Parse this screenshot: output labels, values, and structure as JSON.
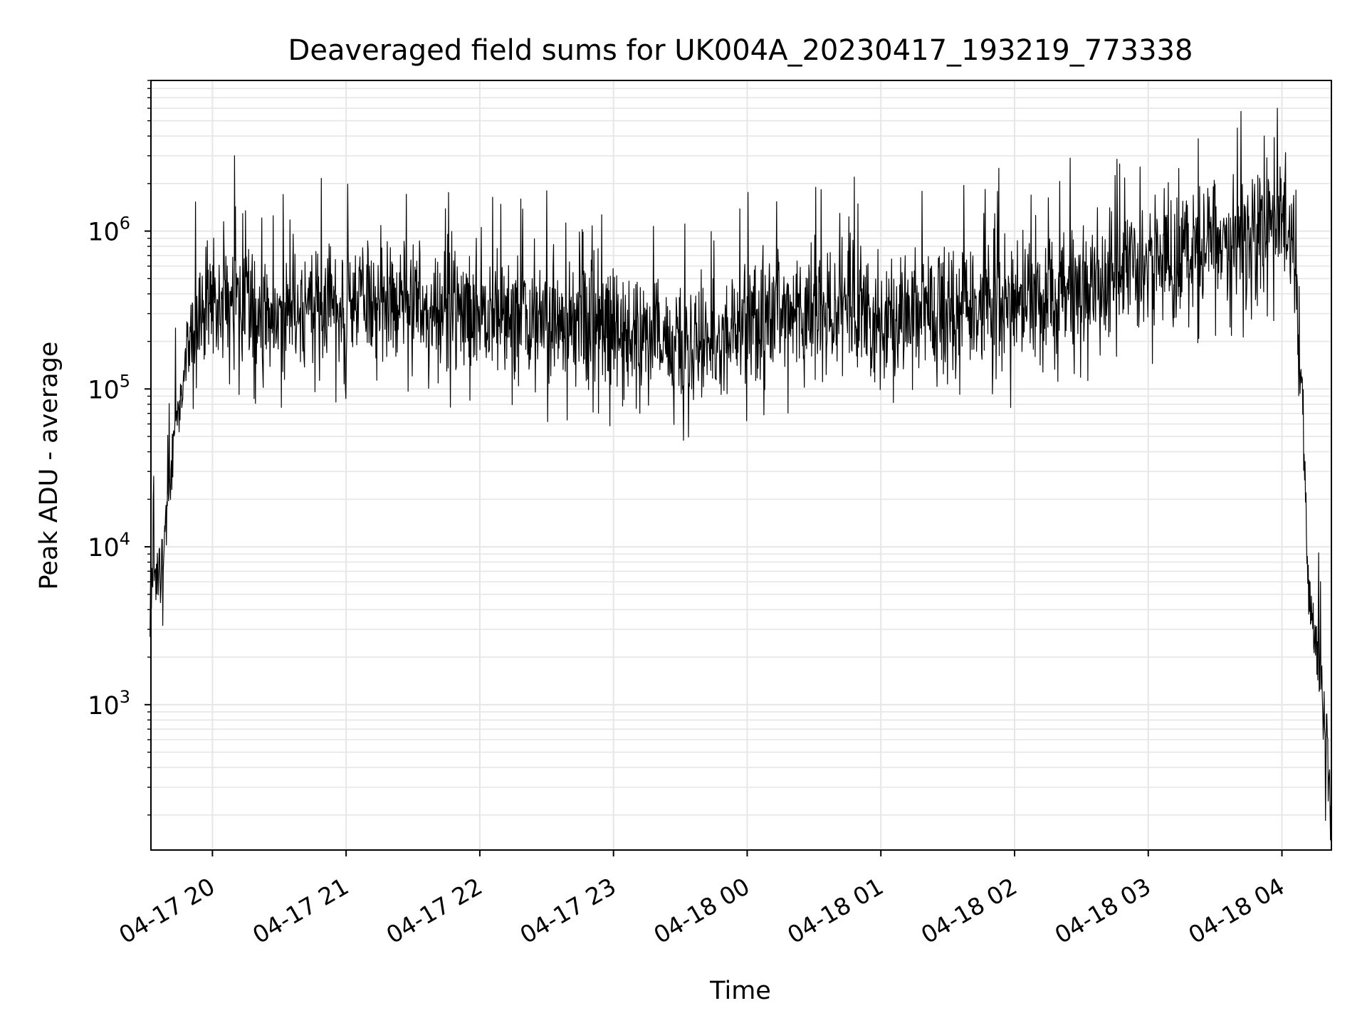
{
  "chart_data": {
    "type": "line",
    "title": "Deaveraged field sums for UK004A_20230417_193219_773338",
    "xlabel": "Time",
    "ylabel": "Peak ADU - average",
    "x_start": "04-17 19:32",
    "x_end": "04-18 04:22",
    "xlim_hours": [
      19.54,
      28.37
    ],
    "yscale": "log",
    "ylim": [
      120,
      9000000
    ],
    "grid": "major and minor, light gray",
    "line_color": "#000000",
    "x_ticks": [
      {
        "value": 20,
        "label": "04-17 20"
      },
      {
        "value": 21,
        "label": "04-17 21"
      },
      {
        "value": 22,
        "label": "04-17 22"
      },
      {
        "value": 23,
        "label": "04-17 23"
      },
      {
        "value": 24,
        "label": "04-18 00"
      },
      {
        "value": 25,
        "label": "04-18 01"
      },
      {
        "value": 26,
        "label": "04-18 02"
      },
      {
        "value": 27,
        "label": "04-18 03"
      },
      {
        "value": 28,
        "label": "04-18 04"
      }
    ],
    "y_ticks": [
      {
        "value": 1000,
        "base": "10",
        "exp": "3"
      },
      {
        "value": 10000,
        "base": "10",
        "exp": "4"
      },
      {
        "value": 100000,
        "base": "10",
        "exp": "5"
      },
      {
        "value": 1000000,
        "base": "10",
        "exp": "6"
      }
    ],
    "envelope": [
      {
        "x": "04-17 19:32",
        "y": 5000
      },
      {
        "x": "04-17 19:37",
        "y": 7000
      },
      {
        "x": "04-17 19:41",
        "y": 30000
      },
      {
        "x": "04-17 19:46",
        "y": 100000
      },
      {
        "x": "04-17 19:51",
        "y": 250000
      },
      {
        "x": "04-17 20:00",
        "y": 350000
      },
      {
        "x": "04-17 20:30",
        "y": 320000
      },
      {
        "x": "04-17 21:00",
        "y": 360000
      },
      {
        "x": "04-17 21:30",
        "y": 350000
      },
      {
        "x": "04-17 22:00",
        "y": 300000
      },
      {
        "x": "04-17 22:30",
        "y": 270000
      },
      {
        "x": "04-17 23:00",
        "y": 230000
      },
      {
        "x": "04-17 23:40",
        "y": 190000
      },
      {
        "x": "04-18 00:00",
        "y": 280000
      },
      {
        "x": "04-18 00:30",
        "y": 320000
      },
      {
        "x": "04-18 01:00",
        "y": 300000
      },
      {
        "x": "04-18 01:30",
        "y": 330000
      },
      {
        "x": "04-18 02:00",
        "y": 340000
      },
      {
        "x": "04-18 02:30",
        "y": 420000
      },
      {
        "x": "04-18 03:00",
        "y": 600000
      },
      {
        "x": "04-18 03:30",
        "y": 900000
      },
      {
        "x": "04-18 04:00",
        "y": 1000000
      },
      {
        "x": "04-18 04:05",
        "y": 800000
      },
      {
        "x": "04-18 04:09",
        "y": 100000
      },
      {
        "x": "04-18 04:12",
        "y": 5000
      },
      {
        "x": "04-18 04:16",
        "y": 2500
      },
      {
        "x": "04-18 04:19",
        "y": 900
      },
      {
        "x": "04-18 04:22",
        "y": 200
      }
    ],
    "peaks": [
      {
        "x": "04-17 20:10",
        "y": 3000000
      },
      {
        "x": "04-17 22:30",
        "y": 1800000
      },
      {
        "x": "04-18 00:48",
        "y": 2200000
      },
      {
        "x": "04-18 01:53",
        "y": 2500000
      },
      {
        "x": "04-18 02:25",
        "y": 2900000
      },
      {
        "x": "04-18 03:40",
        "y": 4500000
      },
      {
        "x": "04-18 03:58",
        "y": 6000000
      }
    ]
  }
}
